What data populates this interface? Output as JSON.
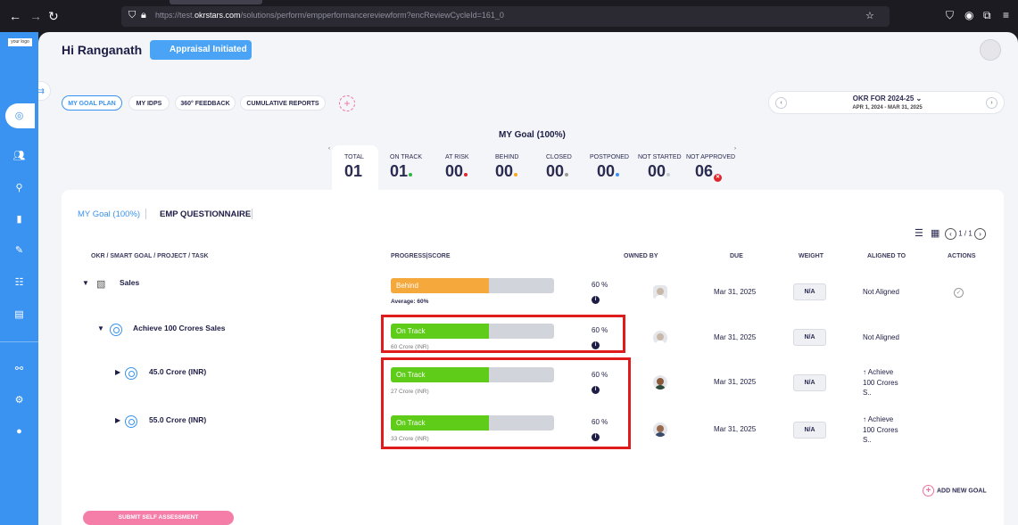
{
  "browser": {
    "url_prefix": "https://test.",
    "url_domain": "okrstars.com",
    "url_path": "/solutions/perform/empperformancereviewform?encReviewCycleId=161_0"
  },
  "sidebar": {
    "logo_text": "your logo"
  },
  "header": {
    "greeting": "Hi Ranganath",
    "badge": "Appraisal Initiated"
  },
  "nav_tabs": [
    {
      "label": "MY GOAL PLAN",
      "active": true
    },
    {
      "label": "MY IDPS"
    },
    {
      "label": "360° FEEDBACK"
    },
    {
      "label": "CUMULATIVE REPORTS"
    }
  ],
  "cycle": {
    "title": "OKR FOR 2024-25",
    "range": "APR 1, 2024 - MAR 31, 2025"
  },
  "goal_summary": {
    "title": "MY Goal (100%)",
    "stats": [
      {
        "label": "TOTAL",
        "value": "01"
      },
      {
        "label": "ON TRACK",
        "value": "01",
        "dot": "#2fb24a"
      },
      {
        "label": "AT RISK",
        "value": "00",
        "dot": "#e0242c"
      },
      {
        "label": "BEHIND",
        "value": "00",
        "dot": "#f5a623"
      },
      {
        "label": "CLOSED",
        "value": "00",
        "dot": "#9a9a9a"
      },
      {
        "label": "POSTPONED",
        "value": "00",
        "dot": "#3a93f1"
      },
      {
        "label": "NOT STARTED",
        "value": "00",
        "dot": "#c9ccd6"
      },
      {
        "label": "NOT APPROVED",
        "value": "06"
      }
    ]
  },
  "panel": {
    "tab_goal": "MY Goal (100%)",
    "tab_questionnaire": "EMP QUESTIONNAIRE",
    "pager": "1 / 1",
    "columns": {
      "okr": "OKR / SMART GOAL / PROJECT / TASK",
      "progress": "PROGRESS|SCORE",
      "owned": "OWNED BY",
      "due": "DUE",
      "weight": "WEIGHT",
      "aligned": "ALIGNED TO",
      "actions": "ACTIONS"
    },
    "rows": [
      {
        "name": "Sales",
        "status": "Behind",
        "progress": 0.6,
        "sub": "Average: 60%",
        "score": "60  %",
        "due": "Mar 31, 2025",
        "weight": "N/A",
        "aligned": [
          "Not Aligned"
        ]
      },
      {
        "name": "Achieve 100 Crores Sales",
        "status": "On Track",
        "progress": 0.6,
        "sub": "60 Crore (INR)",
        "score": "60  %",
        "due": "Mar 31, 2025",
        "weight": "N/A",
        "aligned": [
          "Not Aligned"
        ]
      },
      {
        "name": "45.0 Crore (INR)",
        "status": "On Track",
        "progress": 0.6,
        "sub": "27 Crore (INR)",
        "score": "60  %",
        "due": "Mar 31, 2025",
        "weight": "N/A",
        "aligned": [
          "↑ Achieve",
          "100 Crores",
          "S.."
        ]
      },
      {
        "name": "55.0 Crore (INR)",
        "status": "On Track",
        "progress": 0.6,
        "sub": "33 Crore (INR)",
        "score": "60  %",
        "due": "Mar 31, 2025",
        "weight": "N/A",
        "aligned": [
          "↑ Achieve",
          "100 Crores",
          "S.."
        ]
      }
    ],
    "add_goal": "ADD NEW GOAL",
    "submit": "SUBMIT SELF ASSESSMENT"
  },
  "colors": {
    "behind": "#f5a83c",
    "on_track": "#5fcc1a",
    "sidebar": "#3a93f1",
    "highlight": "#e01b1b"
  }
}
